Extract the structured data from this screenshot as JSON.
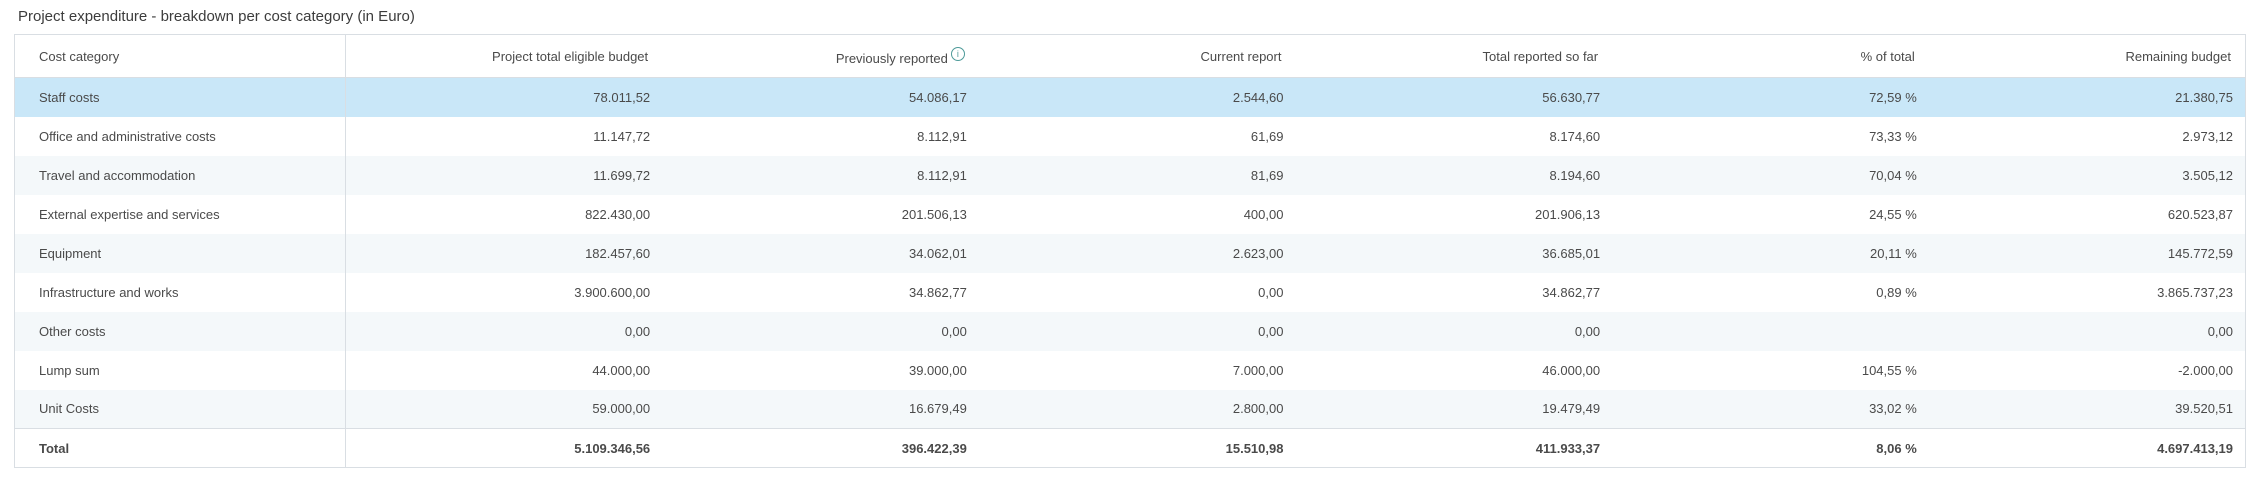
{
  "title": "Project expenditure - breakdown per cost category (in Euro)",
  "colors": {
    "highlight": "#c9e7f8",
    "stripe": "#f4f8fa",
    "border": "#d9dee3",
    "text": "#4a4a4a",
    "title": "#3c3c3c",
    "icon": "#4d9a99"
  },
  "table": {
    "info_icon_glyph": "i",
    "columns": [
      "Cost category",
      "Project total eligible budget",
      "Previously reported",
      "Current report",
      "Total reported so far",
      "% of total",
      "Remaining budget"
    ],
    "rows": [
      {
        "category": "Staff costs",
        "highlighted": true,
        "values": [
          "78.011,52",
          "54.086,17",
          "2.544,60",
          "56.630,77",
          "72,59 %",
          "21.380,75"
        ]
      },
      {
        "category": "Office and administrative costs",
        "values": [
          "11.147,72",
          "8.112,91",
          "61,69",
          "8.174,60",
          "73,33 %",
          "2.973,12"
        ]
      },
      {
        "category": "Travel and accommodation",
        "values": [
          "11.699,72",
          "8.112,91",
          "81,69",
          "8.194,60",
          "70,04 %",
          "3.505,12"
        ]
      },
      {
        "category": "External expertise and services",
        "values": [
          "822.430,00",
          "201.506,13",
          "400,00",
          "201.906,13",
          "24,55 %",
          "620.523,87"
        ]
      },
      {
        "category": "Equipment",
        "values": [
          "182.457,60",
          "34.062,01",
          "2.623,00",
          "36.685,01",
          "20,11 %",
          "145.772,59"
        ]
      },
      {
        "category": "Infrastructure and works",
        "values": [
          "3.900.600,00",
          "34.862,77",
          "0,00",
          "34.862,77",
          "0,89 %",
          "3.865.737,23"
        ]
      },
      {
        "category": "Other costs",
        "values": [
          "0,00",
          "0,00",
          "0,00",
          "0,00",
          "",
          "0,00"
        ]
      },
      {
        "category": "Lump sum",
        "values": [
          "44.000,00",
          "39.000,00",
          "7.000,00",
          "46.000,00",
          "104,55 %",
          "-2.000,00"
        ]
      },
      {
        "category": "Unit Costs",
        "values": [
          "59.000,00",
          "16.679,49",
          "2.800,00",
          "19.479,49",
          "33,02 %",
          "39.520,51"
        ]
      }
    ],
    "total_row": {
      "category": "Total",
      "values": [
        "5.109.346,56",
        "396.422,39",
        "15.510,98",
        "411.933,37",
        "8,06 %",
        "4.697.413,19"
      ]
    }
  }
}
